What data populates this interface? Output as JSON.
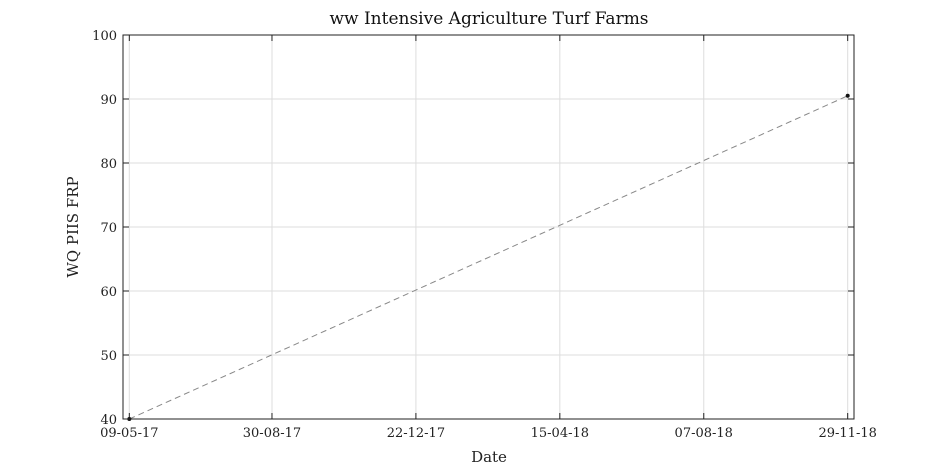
{
  "chart_data": {
    "type": "line",
    "title": "ww Intensive Agriculture Turf Farms",
    "xlabel": "Date",
    "ylabel": "WQ PIIS FRP",
    "x_tick_labels": [
      "09-05-17",
      "30-08-17",
      "22-12-17",
      "15-04-18",
      "07-08-18",
      "29-11-18"
    ],
    "x_ticks": [
      "2017-05-09",
      "2017-08-30",
      "2017-12-22",
      "2018-04-15",
      "2018-08-07",
      "2018-11-29"
    ],
    "xlim": [
      "2017-05-04",
      "2018-12-04"
    ],
    "ylim": [
      40,
      100
    ],
    "y_ticks": [
      40,
      50,
      60,
      70,
      80,
      90,
      100
    ],
    "grid": true,
    "series": [
      {
        "points": [
          {
            "x": "2017-05-09",
            "y": 40
          },
          {
            "x": "2018-11-29",
            "y": 90.5
          }
        ],
        "color": "#888888",
        "line_style": "dashed",
        "marker_color": "#111111"
      }
    ]
  }
}
